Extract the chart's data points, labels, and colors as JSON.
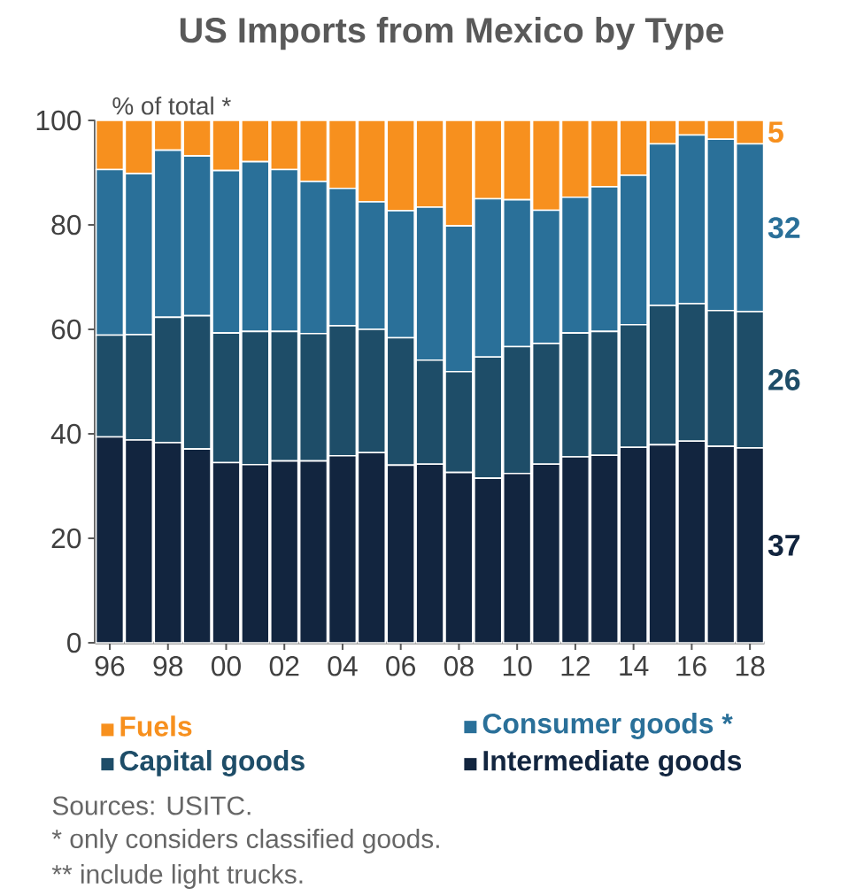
{
  "chart_data": {
    "type": "bar",
    "stacked": true,
    "title": "US Imports from Mexico by Type",
    "ylabel": "% of total *",
    "categories": [
      "96",
      null,
      "98",
      null,
      "00",
      null,
      "02",
      null,
      "04",
      null,
      "06",
      null,
      "08",
      null,
      "10",
      null,
      "12",
      null,
      "14",
      null,
      "16",
      null,
      "18"
    ],
    "series": [
      {
        "name": "Intermediate goods",
        "color": "#12253f",
        "values": [
          39.4,
          38.8,
          38.3,
          37.1,
          34.5,
          34.1,
          34.8,
          34.8,
          35.8,
          36.4,
          34.0,
          34.2,
          32.6,
          31.5,
          32.4,
          34.2,
          35.6,
          35.9,
          37.4,
          37.9,
          38.6,
          37.6,
          37.3
        ],
        "value_labels": [
          null,
          null,
          null,
          null,
          null,
          null,
          null,
          null,
          null,
          null,
          null,
          null,
          null,
          null,
          null,
          null,
          null,
          null,
          null,
          null,
          null,
          null,
          "37"
        ]
      },
      {
        "name": "Capital goods",
        "color": "#1e4d68",
        "values": [
          19.5,
          20.2,
          24.0,
          25.5,
          24.8,
          25.5,
          24.8,
          24.4,
          24.9,
          23.6,
          24.4,
          19.9,
          19.3,
          23.2,
          24.3,
          23.1,
          23.7,
          23.7,
          23.5,
          26.7,
          26.3,
          26.0,
          26.1
        ],
        "value_labels": [
          null,
          null,
          null,
          null,
          null,
          null,
          null,
          null,
          null,
          null,
          null,
          null,
          null,
          null,
          null,
          null,
          null,
          null,
          null,
          null,
          null,
          null,
          "26"
        ]
      },
      {
        "name": "Consumer goods *",
        "color": "#2a7099",
        "values": [
          31.7,
          30.8,
          32.0,
          30.6,
          31.1,
          32.5,
          31.0,
          29.1,
          26.3,
          24.4,
          24.3,
          29.3,
          27.9,
          30.3,
          28.1,
          25.5,
          26.0,
          27.7,
          28.6,
          30.9,
          32.3,
          32.8,
          32.1
        ],
        "value_labels": [
          null,
          null,
          null,
          null,
          null,
          null,
          null,
          null,
          null,
          null,
          null,
          null,
          null,
          null,
          null,
          null,
          null,
          null,
          null,
          null,
          null,
          null,
          "32"
        ]
      },
      {
        "name": "Fuels",
        "color": "#f7901e",
        "values": [
          9.4,
          10.2,
          5.7,
          6.8,
          9.6,
          7.9,
          9.4,
          11.7,
          13.0,
          15.6,
          17.3,
          16.6,
          20.2,
          15.0,
          15.2,
          17.2,
          14.7,
          12.7,
          10.5,
          4.5,
          2.8,
          3.6,
          4.5
        ],
        "value_labels": [
          null,
          null,
          null,
          null,
          null,
          null,
          null,
          null,
          null,
          null,
          null,
          null,
          null,
          null,
          null,
          null,
          null,
          null,
          null,
          null,
          null,
          null,
          "5"
        ]
      }
    ],
    "ylim": [
      0,
      100
    ],
    "yticks": [
      0,
      20,
      40,
      60,
      80,
      100
    ],
    "grid": false,
    "legend": "bottom",
    "annotations": [
      "Sources: USITC.",
      "* only considers classified goods.",
      "** include light trucks."
    ]
  }
}
